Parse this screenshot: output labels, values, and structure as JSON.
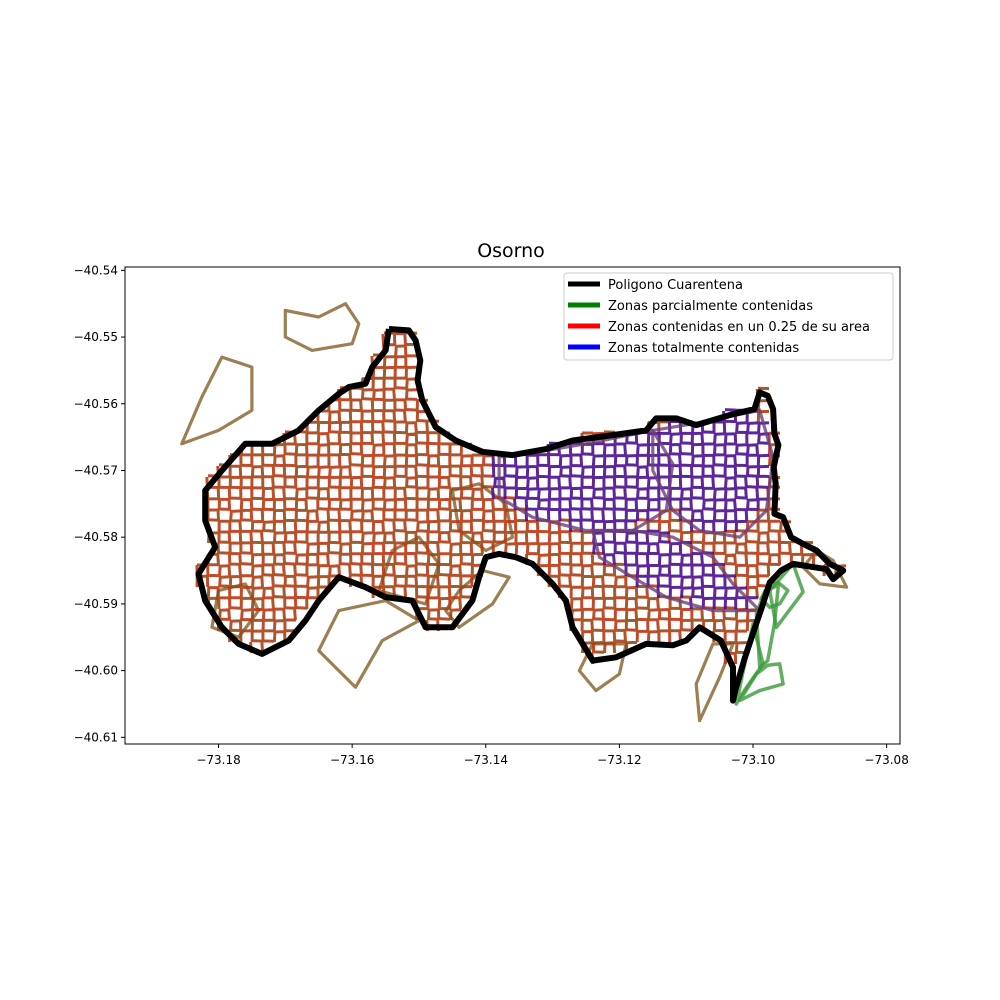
{
  "chart_data": {
    "type": "map",
    "title": "Osorno",
    "xlabel": "",
    "ylabel": "",
    "xlim": [
      -73.194,
      -73.078
    ],
    "ylim": [
      -40.611,
      -40.5395
    ],
    "x_ticks": [
      {
        "value": -73.18,
        "label": "−73.18"
      },
      {
        "value": -73.16,
        "label": "−73.16"
      },
      {
        "value": -73.14,
        "label": "−73.14"
      },
      {
        "value": -73.12,
        "label": "−73.12"
      },
      {
        "value": -73.1,
        "label": "−73.10"
      },
      {
        "value": -73.08,
        "label": "−73.08"
      }
    ],
    "y_ticks": [
      {
        "value": -40.54,
        "label": "−40.54"
      },
      {
        "value": -40.55,
        "label": "−40.55"
      },
      {
        "value": -40.56,
        "label": "−40.56"
      },
      {
        "value": -40.57,
        "label": "−40.57"
      },
      {
        "value": -40.58,
        "label": "−40.58"
      },
      {
        "value": -40.59,
        "label": "−40.59"
      },
      {
        "value": -40.6,
        "label": "−40.60"
      },
      {
        "value": -40.61,
        "label": "−40.61"
      }
    ],
    "legend": {
      "location": "upper right",
      "entries": [
        {
          "label": "Poligono Cuarentena",
          "color": "#000000"
        },
        {
          "label": "Zonas parcialmente contenidas",
          "color": "#008000"
        },
        {
          "label": "Zonas contenidas en un 0.25 de su area",
          "color": "#ff0000"
        },
        {
          "label": "Zonas totalmente contenidas",
          "color": "#0000ff"
        }
      ]
    },
    "layers": {
      "quarantine_polygon": {
        "color": "#000000",
        "coords": [
          [
            -73.1545,
            -40.5488
          ],
          [
            -73.1515,
            -40.549
          ],
          [
            -73.1505,
            -40.5505
          ],
          [
            -73.1498,
            -40.5535
          ],
          [
            -73.1502,
            -40.5565
          ],
          [
            -73.1495,
            -40.5595
          ],
          [
            -73.1475,
            -40.5635
          ],
          [
            -73.1445,
            -40.5655
          ],
          [
            -73.1405,
            -40.5672
          ],
          [
            -73.136,
            -40.5677
          ],
          [
            -73.131,
            -40.5668
          ],
          [
            -73.127,
            -40.5655
          ],
          [
            -73.121,
            -40.5647
          ],
          [
            -73.116,
            -40.564
          ],
          [
            -73.1145,
            -40.5622
          ],
          [
            -73.1115,
            -40.5622
          ],
          [
            -73.1085,
            -40.5632
          ],
          [
            -73.1035,
            -40.5617
          ],
          [
            -73.0998,
            -40.5608
          ],
          [
            -73.099,
            -40.5583
          ],
          [
            -73.0978,
            -40.5588
          ],
          [
            -73.097,
            -40.5608
          ],
          [
            -73.0968,
            -40.5645
          ],
          [
            -73.0962,
            -40.5662
          ],
          [
            -73.0969,
            -40.5695
          ],
          [
            -73.0966,
            -40.572
          ],
          [
            -73.0968,
            -40.5765
          ],
          [
            -73.0955,
            -40.577
          ],
          [
            -73.0943,
            -40.58
          ],
          [
            -73.0925,
            -40.581
          ],
          [
            -73.0905,
            -40.582
          ],
          [
            -73.0885,
            -40.584
          ],
          [
            -73.0865,
            -40.585
          ],
          [
            -73.088,
            -40.5863
          ],
          [
            -73.089,
            -40.5848
          ],
          [
            -73.094,
            -40.584
          ],
          [
            -73.0958,
            -40.585
          ],
          [
            -73.0975,
            -40.5868
          ],
          [
            -73.0985,
            -40.59
          ],
          [
            -73.0997,
            -40.5935
          ],
          [
            -73.1012,
            -40.598
          ],
          [
            -73.1026,
            -40.6028
          ],
          [
            -73.103,
            -40.6045
          ],
          [
            -73.103,
            -40.5995
          ],
          [
            -73.1048,
            -40.5955
          ],
          [
            -73.108,
            -40.5935
          ],
          [
            -73.11,
            -40.5955
          ],
          [
            -73.112,
            -40.5962
          ],
          [
            -73.116,
            -40.596
          ],
          [
            -73.1205,
            -40.598
          ],
          [
            -73.124,
            -40.5985
          ],
          [
            -73.1252,
            -40.5965
          ],
          [
            -73.127,
            -40.5935
          ],
          [
            -73.128,
            -40.5895
          ],
          [
            -73.13,
            -40.587
          ],
          [
            -73.133,
            -40.584
          ],
          [
            -73.1355,
            -40.583
          ],
          [
            -73.138,
            -40.5825
          ],
          [
            -73.14,
            -40.583
          ],
          [
            -73.141,
            -40.586
          ],
          [
            -73.142,
            -40.5895
          ],
          [
            -73.145,
            -40.5935
          ],
          [
            -73.149,
            -40.5935
          ],
          [
            -73.151,
            -40.5895
          ],
          [
            -73.155,
            -40.589
          ],
          [
            -73.158,
            -40.5875
          ],
          [
            -73.162,
            -40.586
          ],
          [
            -73.165,
            -40.5895
          ],
          [
            -73.167,
            -40.5925
          ],
          [
            -73.1695,
            -40.5955
          ],
          [
            -73.1735,
            -40.5975
          ],
          [
            -73.177,
            -40.596
          ],
          [
            -73.1795,
            -40.5935
          ],
          [
            -73.182,
            -40.5895
          ],
          [
            -73.183,
            -40.5855
          ],
          [
            -73.1805,
            -40.5815
          ],
          [
            -73.182,
            -40.5775
          ],
          [
            -73.182,
            -40.573
          ],
          [
            -73.1795,
            -40.57
          ],
          [
            -73.176,
            -40.566
          ],
          [
            -73.172,
            -40.566
          ],
          [
            -73.168,
            -40.564
          ],
          [
            -73.165,
            -40.561
          ],
          [
            -73.162,
            -40.5585
          ],
          [
            -73.1605,
            -40.5575
          ],
          [
            -73.158,
            -40.557
          ],
          [
            -73.157,
            -40.5545
          ],
          [
            -73.155,
            -40.552
          ],
          [
            -73.1545,
            -40.5488
          ]
        ]
      },
      "partial_zones": [
        {
          "coords": [
            [
              -73.0988,
              -40.5892
            ],
            [
              -73.0975,
              -40.587
            ],
            [
              -73.0962,
              -40.5868
            ],
            [
              -73.0948,
              -40.588
            ],
            [
              -73.096,
              -40.59
            ],
            [
              -73.0975,
              -40.5905
            ],
            [
              -73.0988,
              -40.5892
            ]
          ]
        },
        {
          "coords": [
            [
              -73.0995,
              -40.5915
            ],
            [
              -73.0982,
              -40.588
            ],
            [
              -73.0962,
              -40.5872
            ],
            [
              -73.0968,
              -40.593
            ],
            [
              -73.0978,
              -40.5985
            ],
            [
              -73.099,
              -40.5995
            ],
            [
              -73.0995,
              -40.5915
            ]
          ]
        },
        {
          "coords": [
            [
              -73.102,
              -40.6045
            ],
            [
              -73.0995,
              -40.6005
            ],
            [
              -73.0978,
              -40.5992
            ],
            [
              -73.096,
              -40.599
            ],
            [
              -73.0955,
              -40.602
            ],
            [
              -73.099,
              -40.603
            ],
            [
              -73.102,
              -40.6045
            ]
          ]
        },
        {
          "coords": [
            [
              -73.1025,
              -40.605
            ],
            [
              -73.1,
              -40.593
            ],
            [
              -73.0985,
              -40.599
            ],
            [
              -73.102,
              -40.604
            ]
          ]
        },
        {
          "coords": [
            [
              -73.0975,
              -40.588
            ],
            [
              -73.094,
              -40.584
            ],
            [
              -73.0925,
              -40.5882
            ],
            [
              -73.0965,
              -40.5935
            ],
            [
              -73.0975,
              -40.588
            ]
          ]
        }
      ],
      "quarter_zones": [
        {
          "coords": [
            [
              -73.1855,
              -40.566
            ],
            [
              -73.1825,
              -40.559
            ],
            [
              -73.1795,
              -40.553
            ],
            [
              -73.175,
              -40.5545
            ],
            [
              -73.175,
              -40.561
            ],
            [
              -73.18,
              -40.564
            ],
            [
              -73.1855,
              -40.566
            ]
          ]
        },
        {
          "coords": [
            [
              -73.17,
              -40.546
            ],
            [
              -73.165,
              -40.547
            ],
            [
              -73.161,
              -40.545
            ],
            [
              -73.159,
              -40.548
            ],
            [
              -73.16,
              -40.551
            ],
            [
              -73.166,
              -40.552
            ],
            [
              -73.17,
              -40.55
            ],
            [
              -73.17,
              -40.546
            ]
          ]
        },
        {
          "coords": [
            [
              -73.144,
              -40.5935
            ],
            [
              -73.139,
              -40.59
            ],
            [
              -73.1365,
              -40.586
            ],
            [
              -73.1405,
              -40.585
            ],
            [
              -73.144,
              -40.588
            ],
            [
              -73.146,
              -40.591
            ],
            [
              -73.144,
              -40.5935
            ]
          ]
        },
        {
          "coords": [
            [
              -73.1595,
              -40.6025
            ],
            [
              -73.1555,
              -40.5955
            ],
            [
              -73.15,
              -40.5925
            ],
            [
              -73.155,
              -40.5895
            ],
            [
              -73.162,
              -40.591
            ],
            [
              -73.165,
              -40.597
            ],
            [
              -73.1595,
              -40.6025
            ]
          ]
        },
        {
          "coords": [
            [
              -73.108,
              -40.6075
            ],
            [
              -73.105,
              -40.601
            ],
            [
              -73.103,
              -40.596
            ],
            [
              -73.106,
              -40.596
            ],
            [
              -73.1085,
              -40.602
            ],
            [
              -73.108,
              -40.6075
            ]
          ]
        },
        {
          "coords": [
            [
              -73.1235,
              -40.603
            ],
            [
              -73.12,
              -40.6005
            ],
            [
              -73.119,
              -40.596
            ],
            [
              -73.124,
              -40.596
            ],
            [
              -73.126,
              -40.6
            ],
            [
              -73.1235,
              -40.603
            ]
          ]
        },
        {
          "coords": [
            [
              -73.086,
              -40.5875
            ],
            [
              -73.088,
              -40.5835
            ],
            [
              -73.0905,
              -40.582
            ],
            [
              -73.0925,
              -40.5845
            ],
            [
              -73.09,
              -40.587
            ],
            [
              -73.086,
              -40.5875
            ]
          ]
        },
        {
          "coords": [
            [
              -73.18,
              -40.588
            ],
            [
              -73.176,
              -40.587
            ],
            [
              -73.174,
              -40.591
            ],
            [
              -73.177,
              -40.595
            ],
            [
              -73.181,
              -40.5935
            ],
            [
              -73.18,
              -40.588
            ]
          ]
        },
        {
          "coords": [
            [
              -73.145,
              -40.573
            ],
            [
              -73.141,
              -40.572
            ],
            [
              -73.137,
              -40.575
            ],
            [
              -73.136,
              -40.58
            ],
            [
              -73.14,
              -40.582
            ],
            [
              -73.144,
              -40.579
            ],
            [
              -73.145,
              -40.573
            ]
          ]
        },
        {
          "coords": [
            [
              -73.156,
              -40.588
            ],
            [
              -73.154,
              -40.582
            ],
            [
              -73.15,
              -40.58
            ],
            [
              -73.147,
              -40.584
            ],
            [
              -73.149,
              -40.59
            ],
            [
              -73.156,
              -40.588
            ]
          ]
        }
      ],
      "full_zones": [
        {
          "coords": [
            [
              -73.138,
              -40.568
            ],
            [
              -73.131,
              -40.567
            ],
            [
              -73.125,
              -40.566
            ],
            [
              -73.12,
              -40.565
            ],
            [
              -73.115,
              -40.564
            ],
            [
              -73.112,
              -40.569
            ],
            [
              -73.113,
              -40.576
            ],
            [
              -73.118,
              -40.579
            ],
            [
              -73.125,
              -40.579
            ],
            [
              -73.133,
              -40.577
            ],
            [
              -73.138,
              -40.574
            ],
            [
              -73.138,
              -40.568
            ]
          ]
        },
        {
          "coords": [
            [
              -73.115,
              -40.564
            ],
            [
              -73.109,
              -40.563
            ],
            [
              -73.104,
              -40.562
            ],
            [
              -73.099,
              -40.561
            ],
            [
              -73.097,
              -40.568
            ],
            [
              -73.098,
              -40.576
            ],
            [
              -73.102,
              -40.58
            ],
            [
              -73.108,
              -40.579
            ],
            [
              -73.112,
              -40.576
            ],
            [
              -73.115,
              -40.57
            ],
            [
              -73.115,
              -40.564
            ]
          ]
        },
        {
          "coords": [
            [
              -73.124,
              -40.579
            ],
            [
              -73.118,
              -40.579
            ],
            [
              -73.112,
              -40.58
            ],
            [
              -73.106,
              -40.583
            ],
            [
              -73.103,
              -40.587
            ],
            [
              -73.099,
              -40.591
            ],
            [
              -73.106,
              -40.591
            ],
            [
              -73.113,
              -40.589
            ],
            [
              -73.118,
              -40.586
            ],
            [
              -73.123,
              -40.583
            ],
            [
              -73.124,
              -40.579
            ]
          ]
        }
      ]
    }
  }
}
